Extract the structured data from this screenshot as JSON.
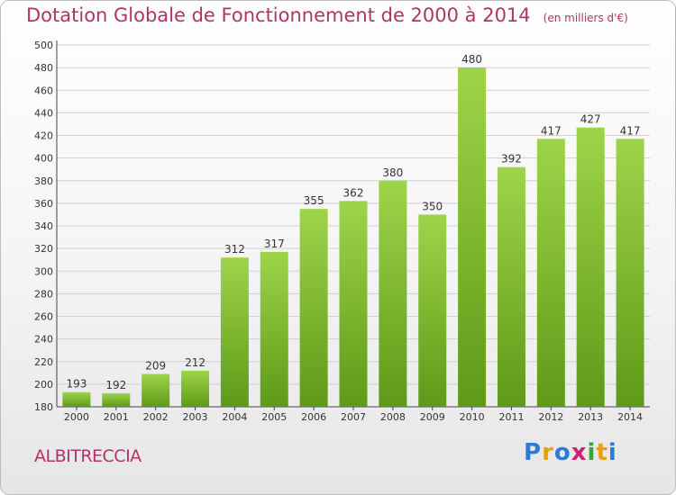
{
  "title": "Dotation Globale de Fonctionnement de 2000 à 2014",
  "unit_label": "(en milliers d'€)",
  "commune": "ALBITRECCIA",
  "logo": {
    "letters": [
      "P",
      "r",
      "o",
      "x",
      "i",
      "t",
      "i"
    ],
    "colors": [
      "#2e7bd6",
      "#e8a10c",
      "#2e7bd6",
      "#d0206f",
      "#3aa43a",
      "#e8a10c",
      "#2e7bd6"
    ]
  },
  "colors": {
    "bar_top": "#9ed449",
    "bar_bottom": "#5e9a18",
    "title": "#b0336a",
    "grid": "#d0d0d0"
  },
  "chart_data": {
    "type": "bar",
    "categories": [
      "2000",
      "2001",
      "2002",
      "2003",
      "2004",
      "2005",
      "2006",
      "2007",
      "2008",
      "2009",
      "2010",
      "2011",
      "2012",
      "2013",
      "2014"
    ],
    "values": [
      193,
      192,
      209,
      212,
      312,
      317,
      355,
      362,
      380,
      350,
      480,
      392,
      417,
      427,
      417
    ],
    "data_labels": [
      "193",
      "192",
      "209",
      "212",
      "312",
      "317",
      "355",
      "362",
      "380",
      "350",
      "480",
      "392",
      "417",
      "427",
      "417"
    ],
    "y_ticks": [
      "180",
      "200",
      "220",
      "240",
      "260",
      "280",
      "300",
      "320",
      "340",
      "360",
      "380",
      "400",
      "420",
      "440",
      "460",
      "480",
      "500"
    ],
    "ylim": [
      180,
      500
    ],
    "y_step": 20,
    "xlabel": "",
    "ylabel": "",
    "grid": true,
    "legend": "none"
  }
}
